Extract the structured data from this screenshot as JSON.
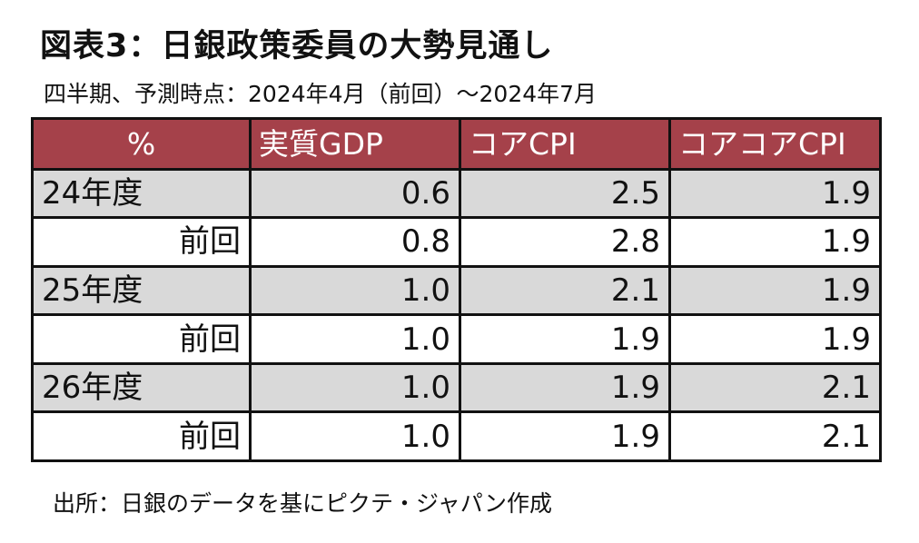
{
  "title": "図表3：日銀政策委員の大勢見通し",
  "subtitle": "四半期、予測時点：2024年4月（前回）～2024年7月",
  "table": {
    "headers": [
      "%",
      "実質GDP",
      "コアCPI",
      "コアコアCPI"
    ],
    "rows": [
      {
        "label": "24年度",
        "values": [
          "0.6",
          "2.5",
          "1.9"
        ]
      },
      {
        "label": "前回",
        "values": [
          "0.8",
          "2.8",
          "1.9"
        ]
      },
      {
        "label": "25年度",
        "values": [
          "1.0",
          "2.1",
          "1.9"
        ]
      },
      {
        "label": "前回",
        "values": [
          "1.0",
          "1.9",
          "1.9"
        ]
      },
      {
        "label": "26年度",
        "values": [
          "1.0",
          "1.9",
          "2.1"
        ]
      },
      {
        "label": "前回",
        "values": [
          "1.0",
          "1.9",
          "2.1"
        ]
      }
    ]
  },
  "source": "出所：日銀のデータを基にピクテ・ジャパン作成",
  "colors": {
    "header_bg": "#a5414a",
    "header_text": "#ffffff",
    "row_gray": "#d9d9d9",
    "row_white": "#ffffff",
    "border": "#111111"
  }
}
